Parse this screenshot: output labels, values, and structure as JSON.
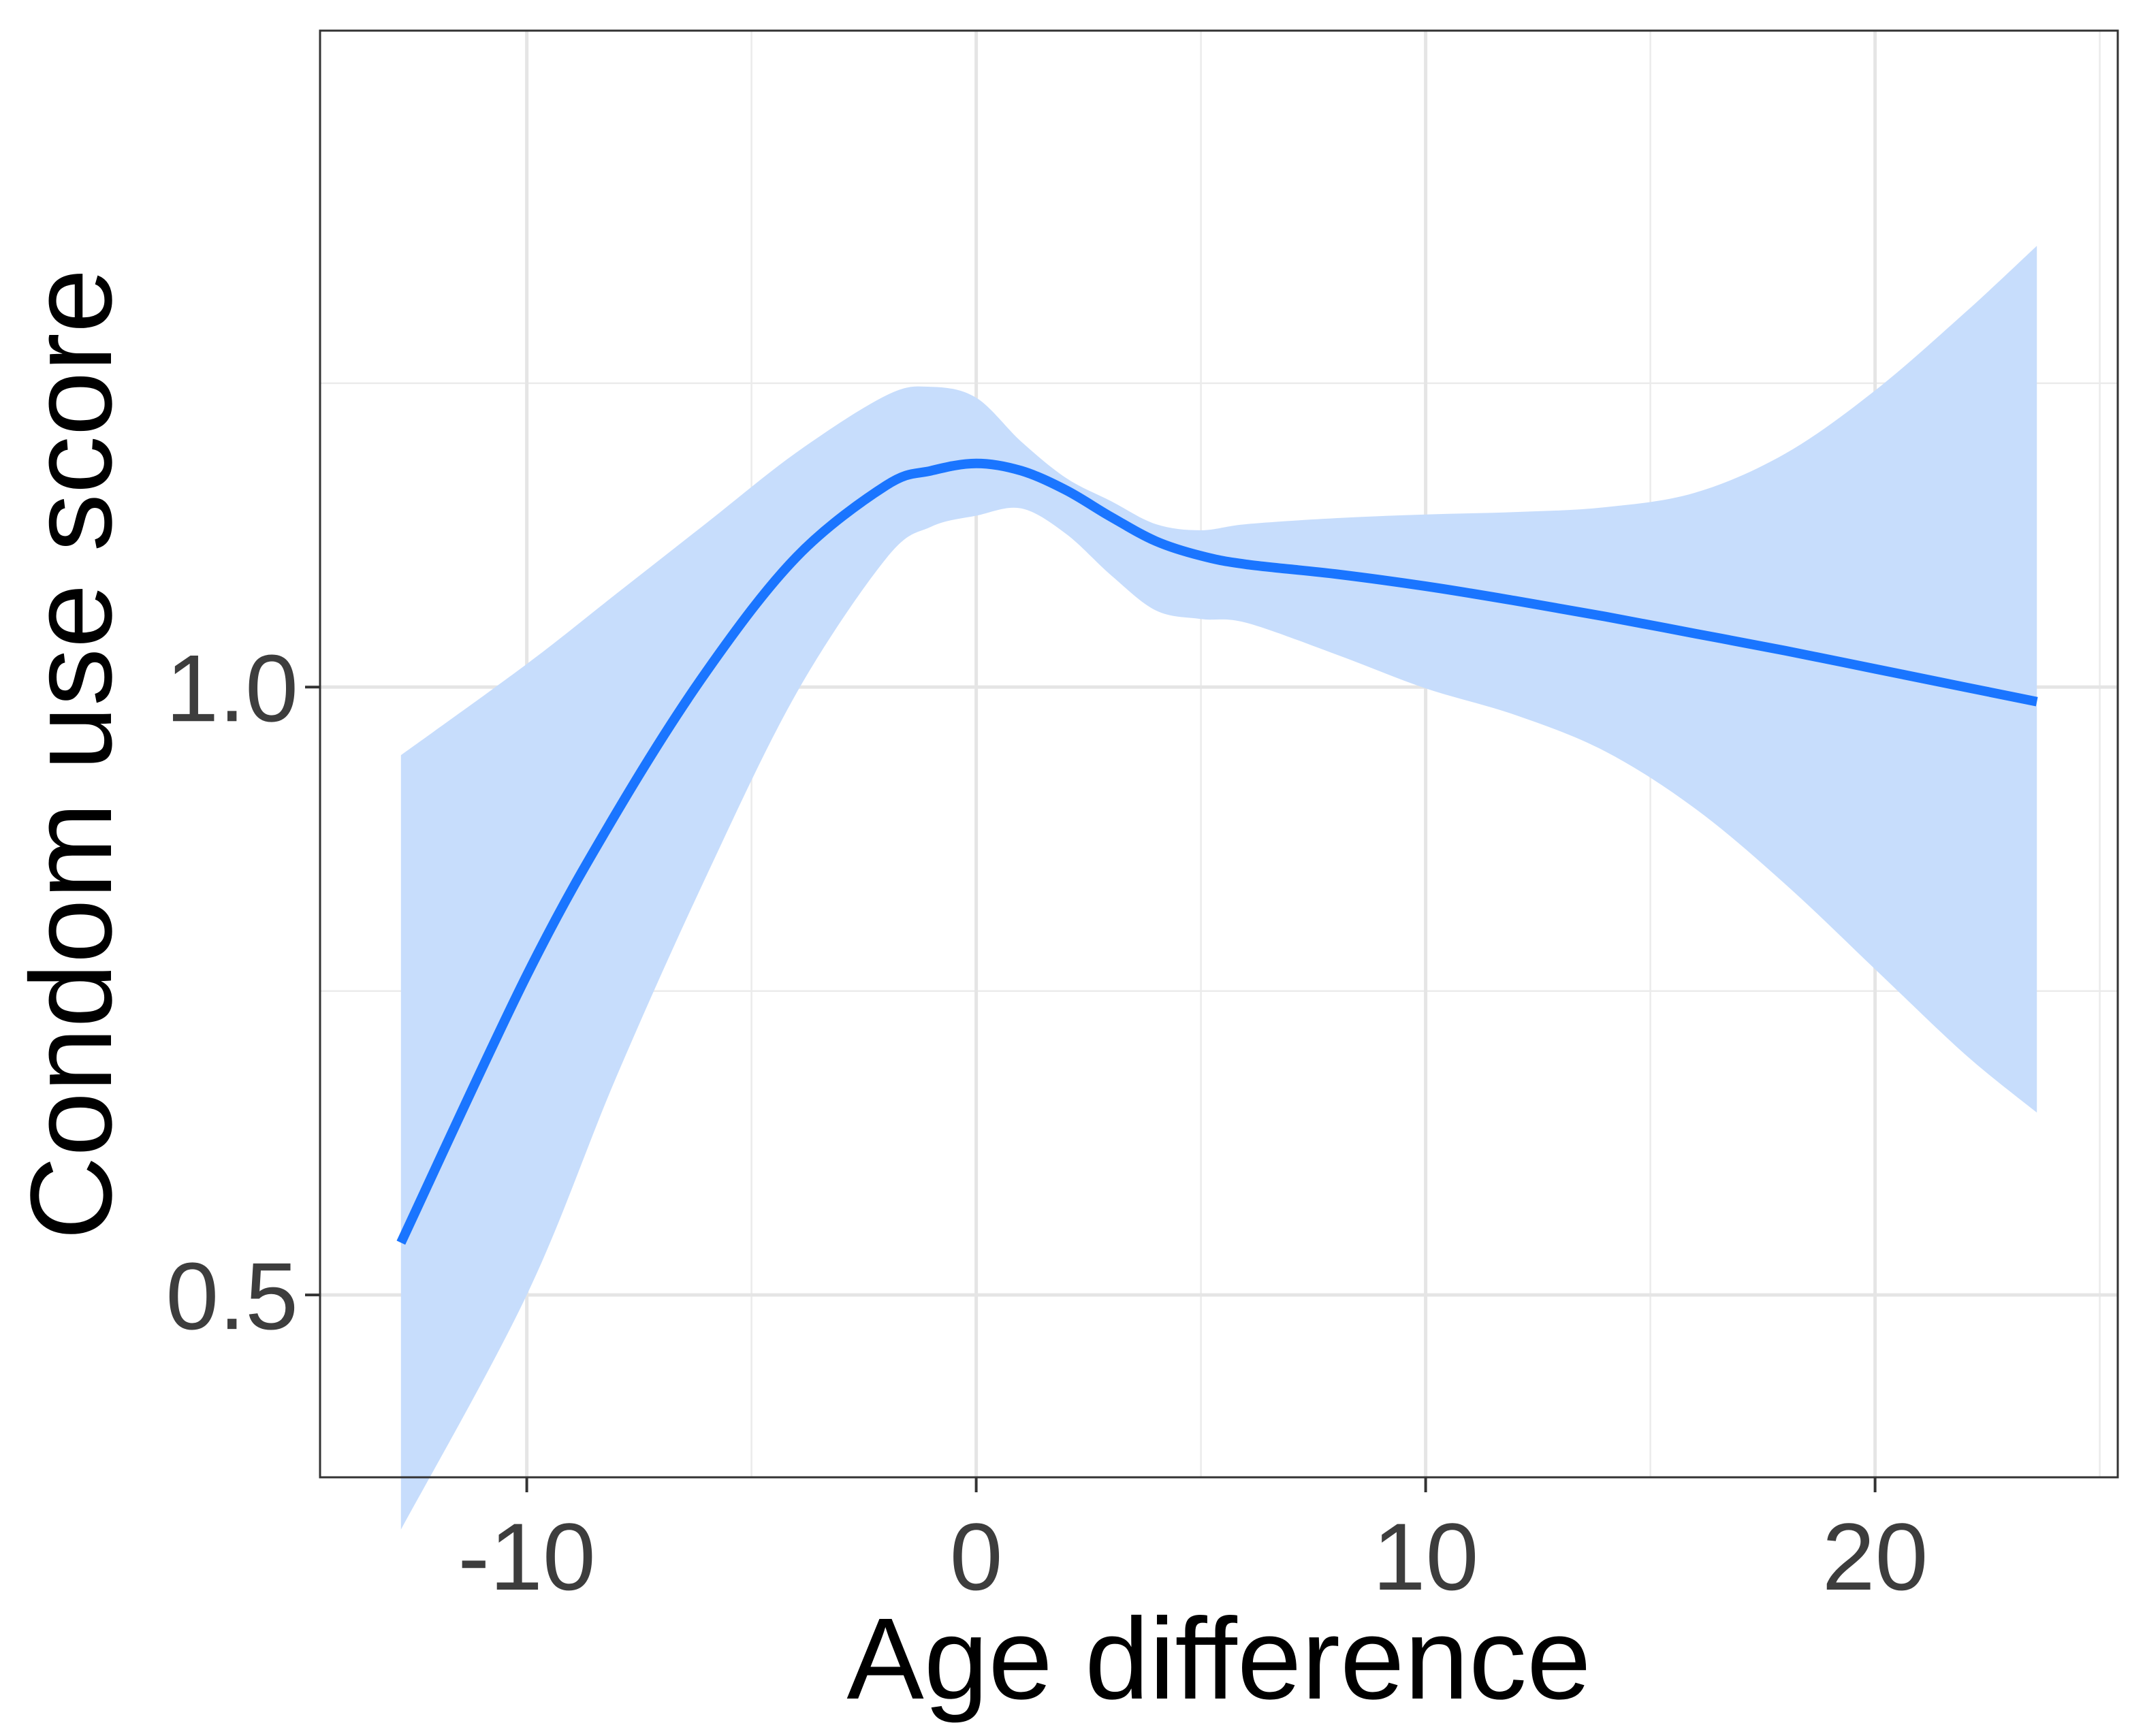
{
  "chart_data": {
    "type": "line",
    "title": "",
    "xlabel": "Age difference",
    "ylabel": "Condom use score",
    "xlim": [
      -14.6,
      25.4
    ],
    "ylim": [
      0.35,
      1.54
    ],
    "x_ticks": [
      -10,
      0,
      10,
      20
    ],
    "x_tick_labels": [
      "-10",
      "0",
      "10",
      "20"
    ],
    "y_ticks": [
      0.5,
      1.0
    ],
    "y_tick_labels": [
      "0.5",
      "1.0"
    ],
    "x_minor_grid": [
      -15,
      -5,
      5,
      15,
      25
    ],
    "y_minor_grid": [
      0.25,
      0.75,
      1.25
    ],
    "grid": true,
    "legend": "none",
    "series": [
      {
        "style": "smooth-with-confidence-band",
        "color": "#1a75ff",
        "band_color": "#c7ddfc",
        "x": [
          -12.8,
          -10,
          -8,
          -6,
          -4,
          -2,
          -1,
          0,
          1,
          2,
          3,
          4,
          5,
          6,
          8,
          10,
          12,
          14,
          16,
          18,
          20,
          22,
          23.6
        ],
        "y": [
          0.543,
          0.763,
          0.897,
          1.013,
          1.107,
          1.166,
          1.178,
          1.184,
          1.178,
          1.162,
          1.14,
          1.12,
          1.108,
          1.101,
          1.093,
          1.083,
          1.071,
          1.058,
          1.044,
          1.03,
          1.015,
          1.0,
          0.988
        ],
        "lower": [
          0.307,
          0.5,
          0.68,
          0.845,
          0.995,
          1.106,
          1.132,
          1.141,
          1.147,
          1.126,
          1.092,
          1.063,
          1.056,
          1.053,
          1.027,
          0.999,
          0.977,
          0.947,
          0.9,
          0.838,
          0.768,
          0.698,
          0.65
        ],
        "upper": [
          0.944,
          1.019,
          1.077,
          1.135,
          1.193,
          1.24,
          1.247,
          1.238,
          1.202,
          1.172,
          1.153,
          1.134,
          1.129,
          1.134,
          1.139,
          1.142,
          1.144,
          1.148,
          1.16,
          1.192,
          1.244,
          1.308,
          1.363
        ]
      }
    ]
  }
}
